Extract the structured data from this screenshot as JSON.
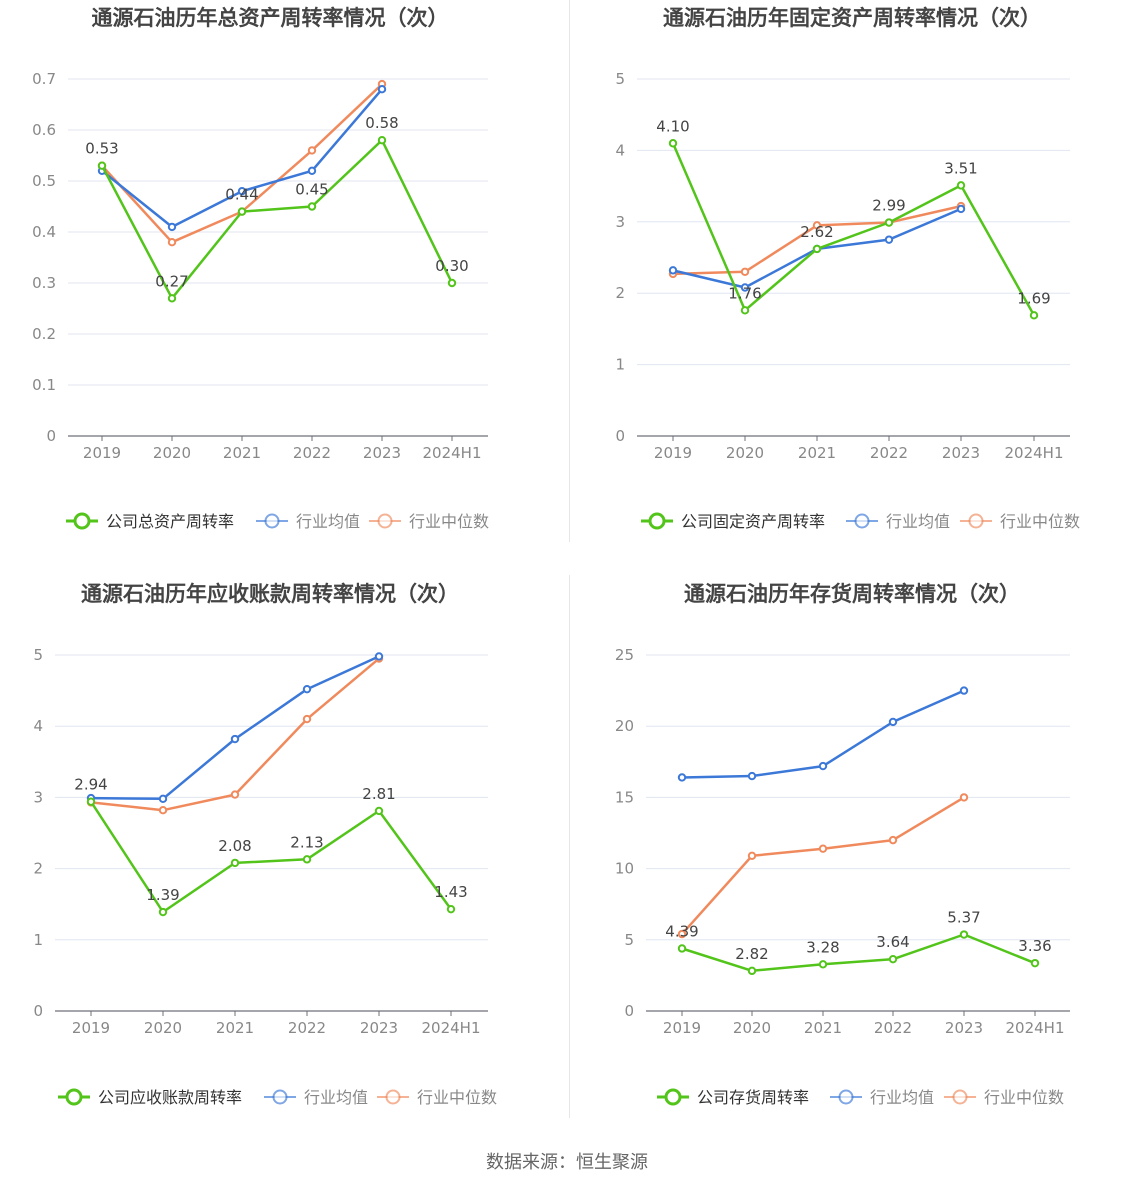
{
  "source": {
    "label": "数据来源：",
    "name": "恒生聚源"
  },
  "colors": {
    "company": "#52c41a",
    "industry_avg": "#3c78d8",
    "industry_median": "#f08a5d",
    "grid": "#e0e6f1",
    "axis": "#666666",
    "title": "#444444"
  },
  "chart_data": [
    {
      "type": "line",
      "title": "通源石油历年总资产周转率情况（次）",
      "categories": [
        "2019",
        "2020",
        "2021",
        "2022",
        "2023",
        "2024H1"
      ],
      "yticks": [
        "0",
        "0.1",
        "0.2",
        "0.3",
        "0.4",
        "0.5",
        "0.6",
        "0.7"
      ],
      "ylim": [
        0,
        0.7
      ],
      "series": [
        {
          "name": "公司总资产周转率",
          "key": "company",
          "values": [
            0.53,
            0.27,
            0.44,
            0.45,
            0.58,
            0.3
          ],
          "labels": [
            "0.53",
            "0.27",
            "0.44",
            "0.45",
            "0.58",
            "0.30"
          ]
        },
        {
          "name": "行业均值",
          "key": "industry_avg",
          "values": [
            0.52,
            0.41,
            0.48,
            0.52,
            0.68,
            null
          ]
        },
        {
          "name": "行业中位数",
          "key": "industry_median",
          "values": [
            0.53,
            0.38,
            0.44,
            0.56,
            0.69,
            null
          ]
        }
      ],
      "legend_position": "bottom"
    },
    {
      "type": "line",
      "title": "通源石油历年固定资产周转率情况（次）",
      "categories": [
        "2019",
        "2020",
        "2021",
        "2022",
        "2023",
        "2024H1"
      ],
      "yticks": [
        "0",
        "1",
        "2",
        "3",
        "4",
        "5"
      ],
      "ylim": [
        0,
        5
      ],
      "series": [
        {
          "name": "公司固定资产周转率",
          "key": "company",
          "values": [
            4.1,
            1.76,
            2.62,
            2.99,
            3.51,
            1.69
          ],
          "labels": [
            "4.10",
            "1.76",
            "2.62",
            "2.99",
            "3.51",
            "1.69"
          ]
        },
        {
          "name": "行业均值",
          "key": "industry_avg",
          "values": [
            2.32,
            2.08,
            2.62,
            2.75,
            3.18,
            null
          ]
        },
        {
          "name": "行业中位数",
          "key": "industry_median",
          "values": [
            2.27,
            2.3,
            2.95,
            2.99,
            3.22,
            null
          ]
        }
      ],
      "legend_position": "bottom"
    },
    {
      "type": "line",
      "title": "通源石油历年应收账款周转率情况（次）",
      "categories": [
        "2019",
        "2020",
        "2021",
        "2022",
        "2023",
        "2024H1"
      ],
      "yticks": [
        "0",
        "1",
        "2",
        "3",
        "4",
        "5"
      ],
      "ylim": [
        0,
        5
      ],
      "series": [
        {
          "name": "公司应收账款周转率",
          "key": "company",
          "values": [
            2.94,
            1.39,
            2.08,
            2.13,
            2.81,
            1.43
          ],
          "labels": [
            "2.94",
            "1.39",
            "2.08",
            "2.13",
            "2.81",
            "1.43"
          ]
        },
        {
          "name": "行业均值",
          "key": "industry_avg",
          "values": [
            2.99,
            2.98,
            3.82,
            4.52,
            4.98,
            null
          ]
        },
        {
          "name": "行业中位数",
          "key": "industry_median",
          "values": [
            2.93,
            2.82,
            3.04,
            4.1,
            4.95,
            null
          ]
        }
      ],
      "legend_position": "bottom"
    },
    {
      "type": "line",
      "title": "通源石油历年存货周转率情况（次）",
      "categories": [
        "2019",
        "2020",
        "2021",
        "2022",
        "2023",
        "2024H1"
      ],
      "yticks": [
        "0",
        "5",
        "10",
        "15",
        "20",
        "25"
      ],
      "ylim": [
        0,
        25
      ],
      "series": [
        {
          "name": "公司存货周转率",
          "key": "company",
          "values": [
            4.39,
            2.82,
            3.28,
            3.64,
            5.37,
            3.36
          ],
          "labels": [
            "4.39",
            "2.82",
            "3.28",
            "3.64",
            "5.37",
            "3.36"
          ]
        },
        {
          "name": "行业均值",
          "key": "industry_avg",
          "values": [
            16.4,
            16.5,
            17.2,
            20.3,
            22.5,
            null
          ]
        },
        {
          "name": "行业中位数",
          "key": "industry_median",
          "values": [
            5.4,
            10.9,
            11.4,
            12.0,
            15.0,
            null
          ]
        }
      ],
      "legend_position": "bottom"
    }
  ]
}
